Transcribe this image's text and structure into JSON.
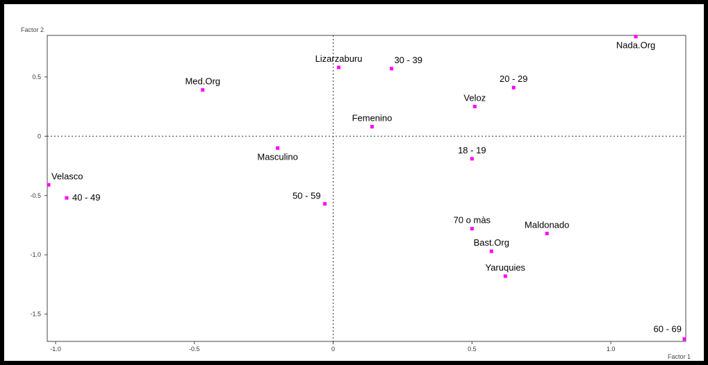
{
  "chart_data": {
    "type": "scatter",
    "xlabel": "Factor 1",
    "ylabel": "Factor 2",
    "xlim": [
      -1.03,
      1.27
    ],
    "ylim": [
      -1.73,
      0.85
    ],
    "xticks": [
      -1.0,
      -0.5,
      0,
      0.5,
      1.0
    ],
    "xtick_labels": [
      "-1.0",
      "-0.5",
      "0",
      "0.5",
      "1.0"
    ],
    "yticks": [
      0.5,
      0,
      -0.5,
      -1.0,
      -1.5
    ],
    "ytick_labels": [
      "0.5",
      "0",
      "-0.5",
      "-1.0",
      "-1.5"
    ],
    "reference_lines": "dotted lines at x = 0 and y = 0",
    "marker_color": "#ff00ff",
    "points": [
      {
        "label": "Nada.Org",
        "x": 1.09,
        "y": 0.84,
        "label_pos": "below"
      },
      {
        "label": "Lizarzaburu",
        "x": 0.02,
        "y": 0.58,
        "label_pos": "above"
      },
      {
        "label": "30 - 39",
        "x": 0.21,
        "y": 0.57,
        "label_pos": "above-right"
      },
      {
        "label": "Med.Org",
        "x": -0.47,
        "y": 0.39,
        "label_pos": "above"
      },
      {
        "label": "20 - 29",
        "x": 0.65,
        "y": 0.41,
        "label_pos": "above"
      },
      {
        "label": "Veloz",
        "x": 0.51,
        "y": 0.25,
        "label_pos": "above"
      },
      {
        "label": "Femenino",
        "x": 0.14,
        "y": 0.08,
        "label_pos": "above"
      },
      {
        "label": "Masculino",
        "x": -0.2,
        "y": -0.1,
        "label_pos": "below"
      },
      {
        "label": "18 - 19",
        "x": 0.5,
        "y": -0.19,
        "label_pos": "above"
      },
      {
        "label": "Velasco",
        "x": -1.03,
        "y": -0.41,
        "label_pos": "above-right"
      },
      {
        "label": "40 - 49",
        "x": -0.96,
        "y": -0.52,
        "label_pos": "right"
      },
      {
        "label": "50 - 59",
        "x": -0.03,
        "y": -0.57,
        "label_pos": "left"
      },
      {
        "label": "70 o màs",
        "x": 0.5,
        "y": -0.78,
        "label_pos": "above"
      },
      {
        "label": "Maldonado",
        "x": 0.77,
        "y": -0.82,
        "label_pos": "above"
      },
      {
        "label": "Bast.Org",
        "x": 0.57,
        "y": -0.97,
        "label_pos": "above"
      },
      {
        "label": "Yaruquies",
        "x": 0.62,
        "y": -1.18,
        "label_pos": "above"
      },
      {
        "label": "60 - 69",
        "x": 1.27,
        "y": -1.71,
        "label_pos": "above-left"
      }
    ]
  }
}
